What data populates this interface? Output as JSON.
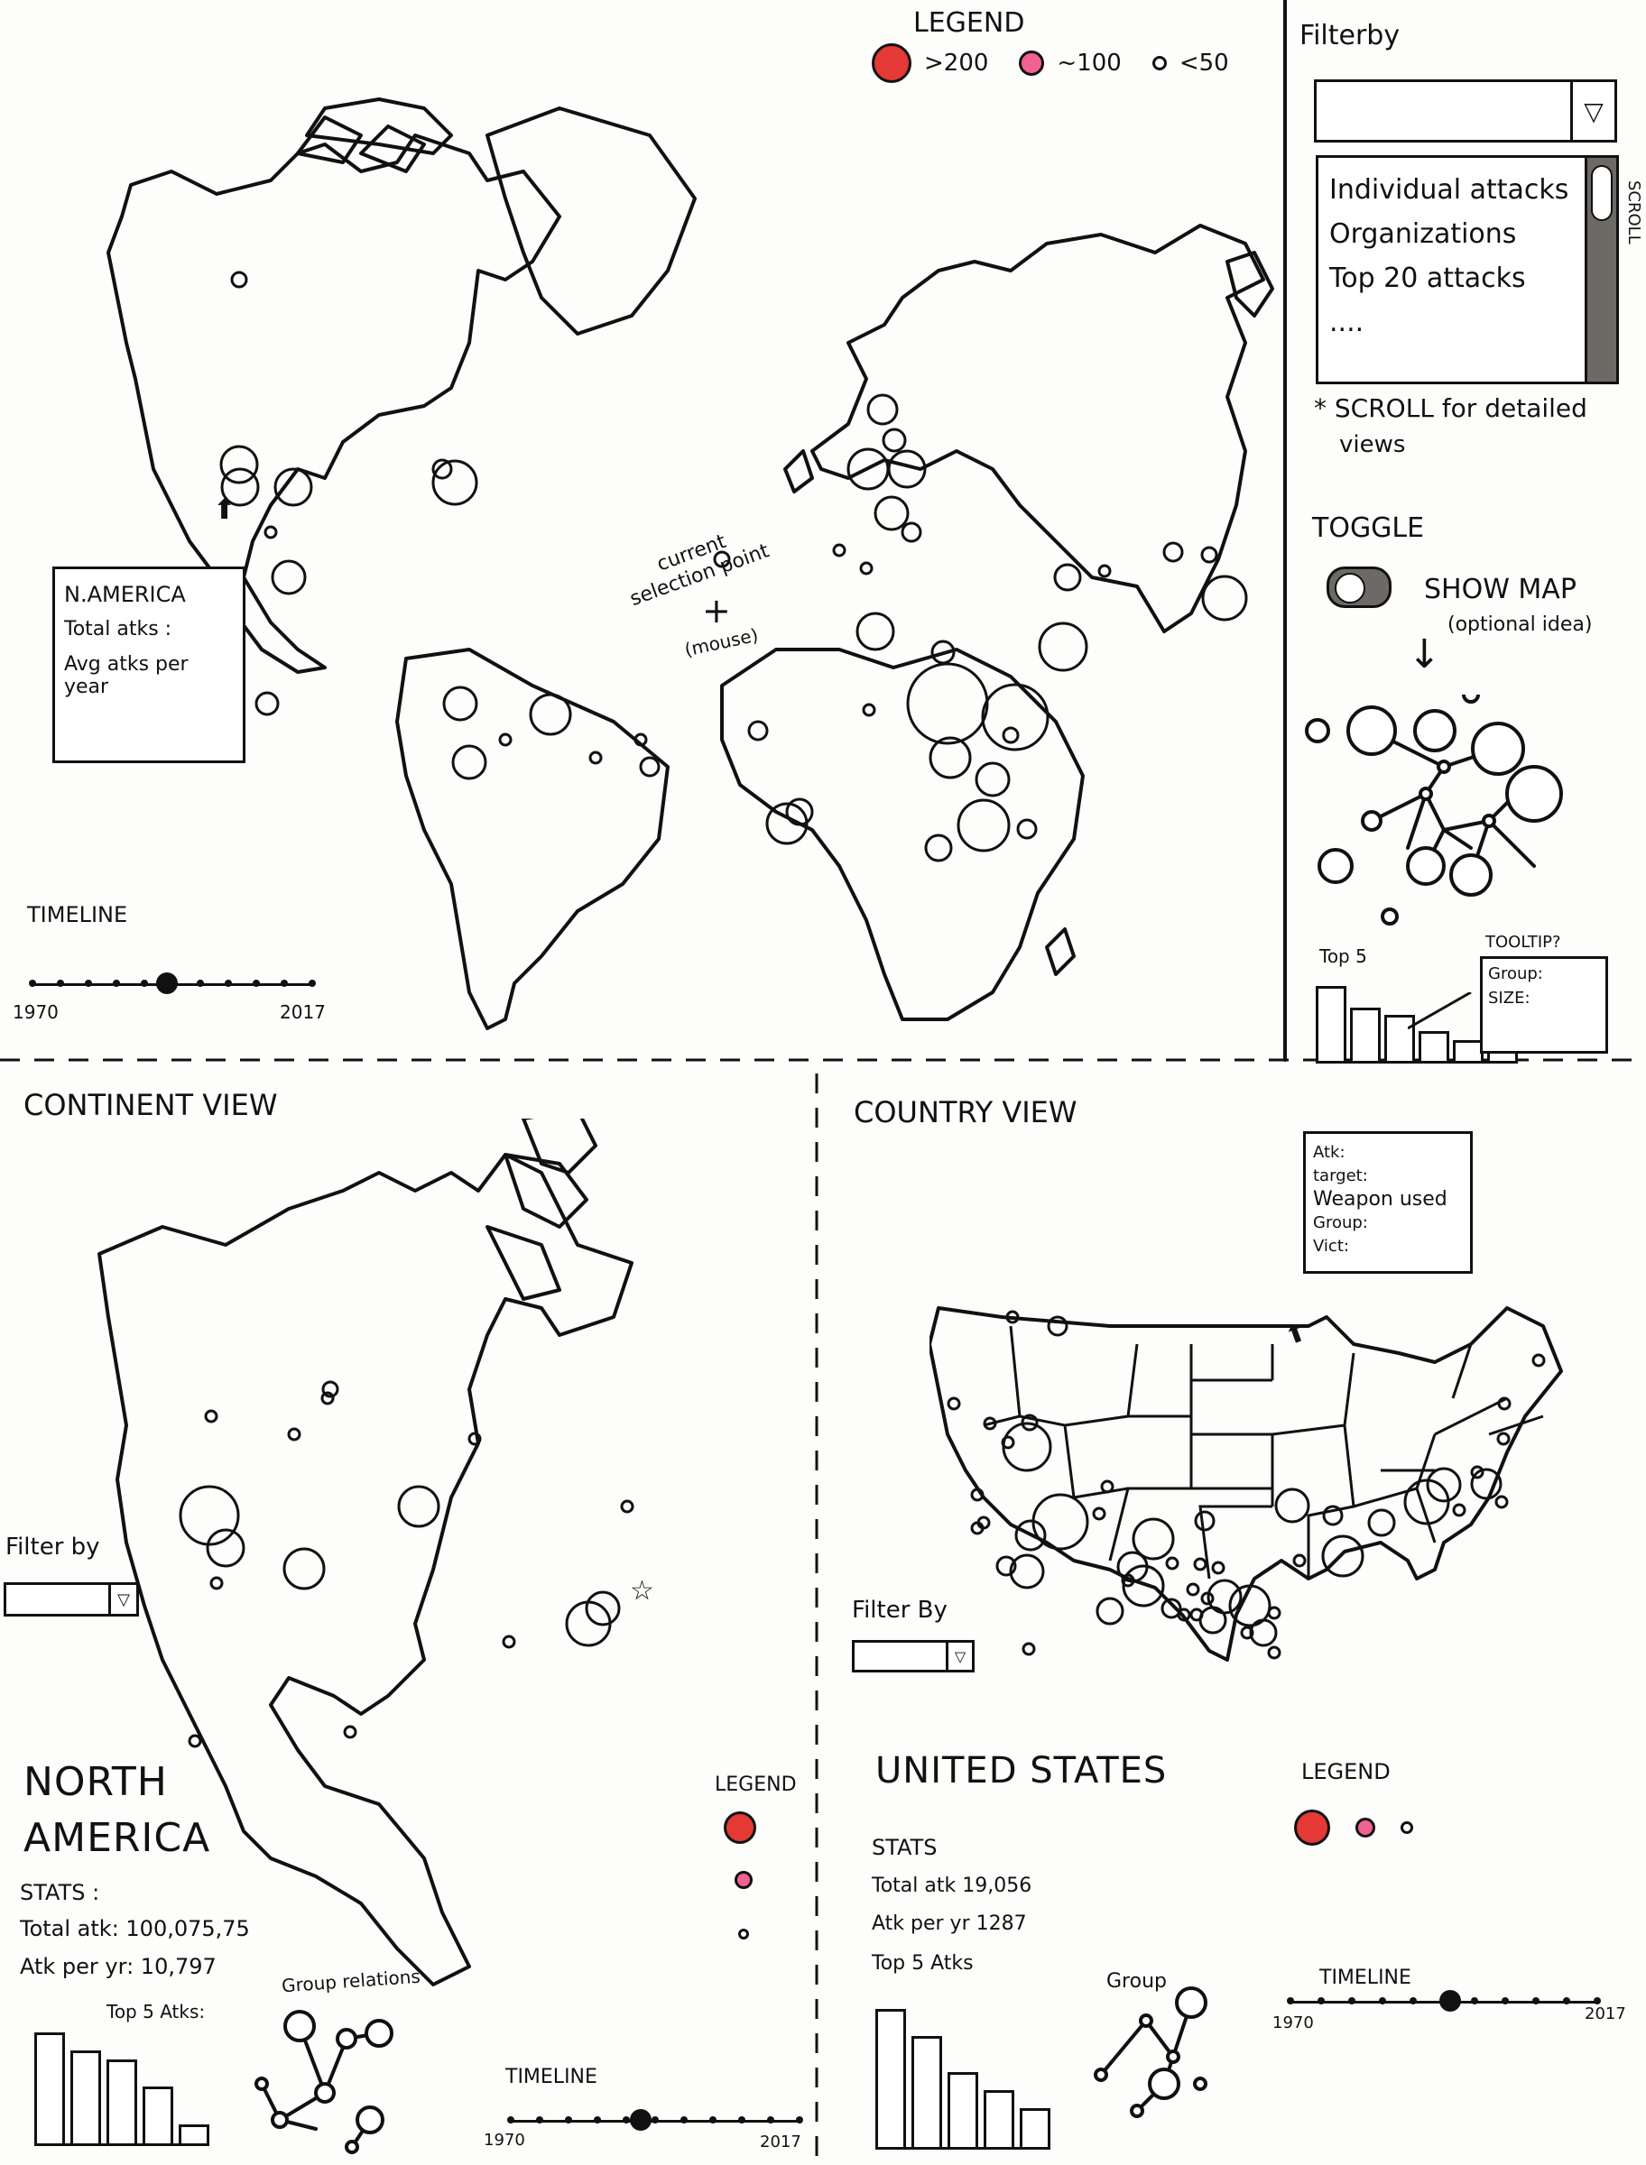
{
  "legend_top": {
    "title": "LEGEND",
    "items": [
      {
        "label": ">200",
        "color": "#e53935"
      },
      {
        "label": "~100",
        "color": "#f06292"
      },
      {
        "label": "<50",
        "color": "#ffffff"
      }
    ]
  },
  "world_panel": {
    "selection_note_line1": "current",
    "selection_note_line2": "selection point",
    "selection_note_line3": "(mouse)",
    "tooltip": {
      "title": "N.AMERICA",
      "line1": "Total atks :",
      "line2": "Avg atks per year"
    },
    "timeline": {
      "label": "TIMELINE",
      "start": "1970",
      "end": "2017",
      "position": 0.48
    }
  },
  "side_panel": {
    "filter_label": "Filterby",
    "list_items": [
      "Individual attacks",
      "Organizations",
      "Top 20 attacks",
      "...."
    ],
    "scroll_label": "SCROLL",
    "scroll_note_line1": "* SCROLL for detailed",
    "scroll_note_line2": "views",
    "toggle_label": "TOGGLE",
    "show_map_label": "SHOW MAP",
    "optional_note": "(optional idea)",
    "top5_label": "Top 5",
    "tooltip_title": "TOOLTIP?",
    "tooltip_group": "Group:",
    "tooltip_size": "SIZE:"
  },
  "continent_panel": {
    "title": "CONTINENT VIEW",
    "filter_label": "Filter by",
    "name_line1": "NORTH",
    "name_line2": "AMERICA",
    "stats_label": "STATS :",
    "total": "Total atk: 100,075,75",
    "per_year": "Atk per yr: 10,797",
    "top5_label": "Top 5 Atks:",
    "group_label": "Group relations",
    "legend_label": "LEGEND",
    "timeline": {
      "label": "TIMELINE",
      "start": "1970",
      "end": "2017",
      "position": 0.45
    }
  },
  "country_panel": {
    "title": "COUNTRY VIEW",
    "tooltip": {
      "line1": "Atk:",
      "line2": "target:",
      "line3": "Weapon used",
      "line4": "Group:",
      "line5": "Vict:"
    },
    "filter_label": "Filter By",
    "name": "UNITED STATES",
    "stats_label": "STATS",
    "total": "Total atk  19,056",
    "per_year": "Atk per yr  1287",
    "top5_label": "Top 5 Atks",
    "group_label": "Group",
    "legend_label": "LEGEND",
    "timeline": {
      "label": "TIMELINE",
      "start": "1970",
      "end": "2017",
      "position": 0.52
    }
  }
}
